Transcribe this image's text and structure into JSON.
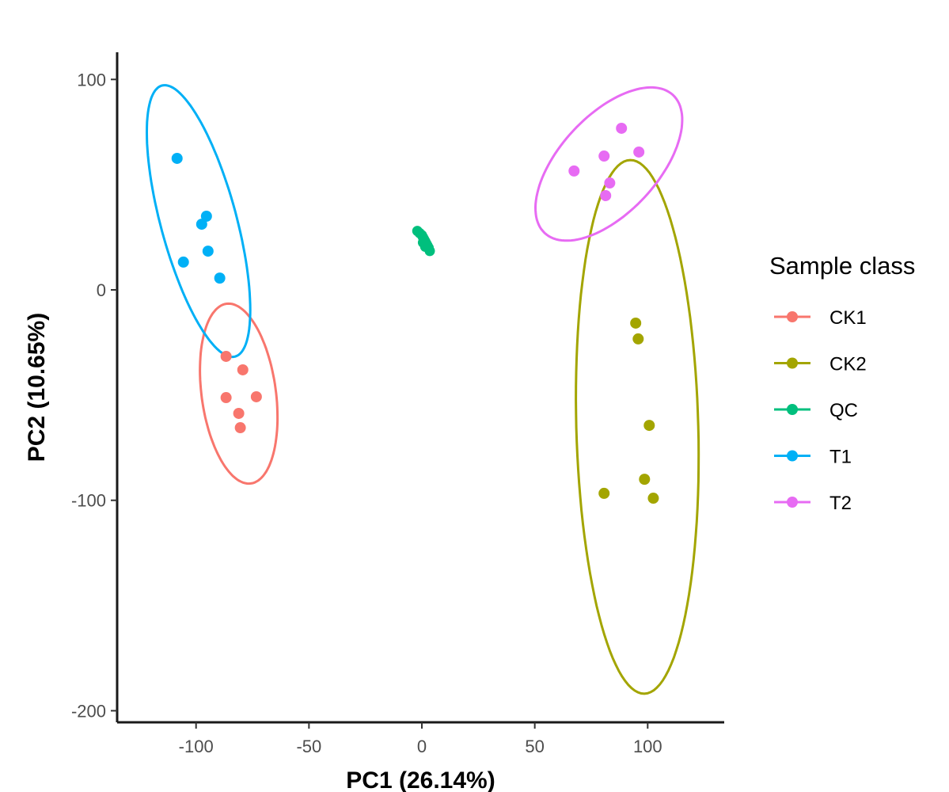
{
  "chart_data": {
    "type": "scatter",
    "title": "",
    "xlabel": "PC1 (26.14%)",
    "ylabel": "PC2 (10.65%)",
    "xlim": [
      -135,
      133
    ],
    "ylim": [
      -205,
      113
    ],
    "xticks": [
      -100,
      -50,
      0,
      50,
      100
    ],
    "xtick_labels": [
      "-100",
      "-50",
      "0",
      "50",
      "100"
    ],
    "yticks": [
      100,
      0,
      -100,
      -200
    ],
    "ytick_labels": [
      "100",
      "0",
      "-100",
      "-200"
    ],
    "grid": false,
    "legend": {
      "title": "Sample class",
      "position": "right"
    },
    "series": [
      {
        "name": "CK1",
        "color": "#F8766D",
        "points": [
          [
            -86.7,
            -31.6
          ],
          [
            -79.3,
            -38.0
          ],
          [
            -86.7,
            -51.2
          ],
          [
            -73.3,
            -50.8
          ],
          [
            -81.1,
            -58.7
          ],
          [
            -80.4,
            -65.5
          ]
        ],
        "ellipse": {
          "center": [
            -81.1,
            -49.3
          ],
          "major_half": [
            5.4,
            -42.7
          ],
          "minor_half": [
            16.3,
            2.4
          ]
        }
      },
      {
        "name": "CK2",
        "color": "#A3A500",
        "points": [
          [
            94.7,
            -15.8
          ],
          [
            95.8,
            -23.3
          ],
          [
            100.7,
            -64.4
          ],
          [
            98.6,
            -90.0
          ],
          [
            80.7,
            -96.7
          ],
          [
            102.5,
            -99.0
          ]
        ],
        "ellipse": {
          "center": [
            95.4,
            -65.1
          ],
          "major_half": [
            3.1,
            -126.8
          ],
          "minor_half": [
            27.0,
            0.4
          ]
        }
      },
      {
        "name": "QC",
        "color": "#00BF7D",
        "points": [
          [
            -2.0,
            28.0
          ],
          [
            -1.0,
            27.0
          ],
          [
            0.0,
            26.0
          ],
          [
            0.5,
            25.0
          ],
          [
            1.0,
            24.0
          ],
          [
            1.5,
            23.0
          ],
          [
            2.0,
            22.0
          ],
          [
            2.5,
            21.0
          ],
          [
            3.0,
            20.0
          ],
          [
            3.5,
            18.5
          ],
          [
            0.5,
            22.5
          ],
          [
            1.5,
            20.5
          ]
        ],
        "ellipse": null
      },
      {
        "name": "T1",
        "color": "#00B0F6",
        "points": [
          [
            -108.4,
            62.5
          ],
          [
            -97.5,
            31.2
          ],
          [
            -95.4,
            35.0
          ],
          [
            -94.7,
            18.4
          ],
          [
            -105.6,
            13.2
          ],
          [
            -89.5,
            5.6
          ]
        ],
        "ellipse": {
          "center": [
            -98.9,
            32.7
          ],
          "major_half": [
            16.2,
            -64.4
          ],
          "minor_half": [
            16.2,
            4.7
          ]
        }
      },
      {
        "name": "T2",
        "color": "#E76BF3",
        "points": [
          [
            88.4,
            76.8
          ],
          [
            80.7,
            63.6
          ],
          [
            96.1,
            65.5
          ],
          [
            67.4,
            56.5
          ],
          [
            83.2,
            50.8
          ],
          [
            81.4,
            44.8
          ]
        ],
        "ellipse": {
          "center": [
            82.8,
            59.8
          ],
          "major_half": [
            28.4,
            32.8
          ],
          "minor_half": [
            15.8,
            -15.8
          ]
        }
      }
    ]
  }
}
